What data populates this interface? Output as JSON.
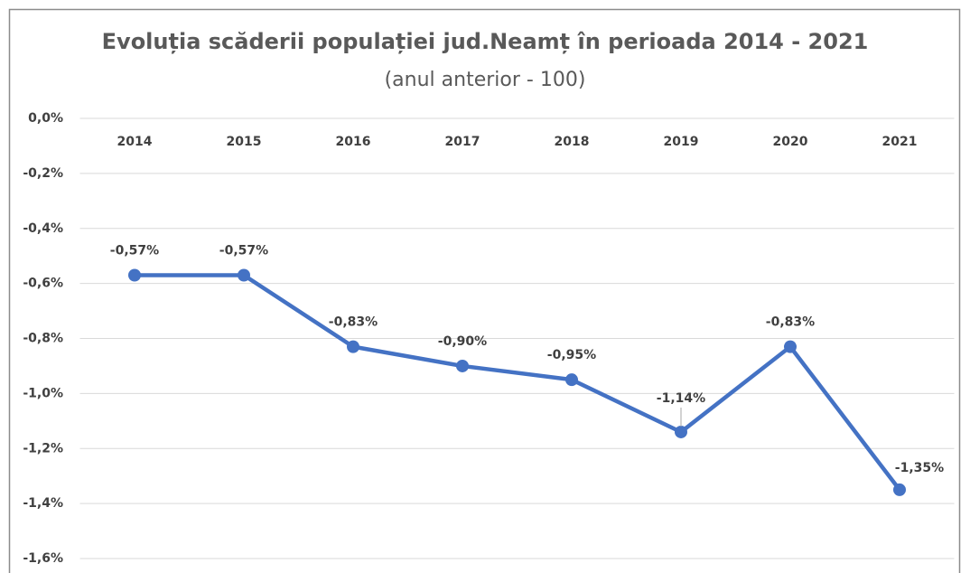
{
  "chart_data": {
    "type": "line",
    "title": "Evoluția scăderii populației jud.Neamț în perioada 2014 - 2021",
    "subtitle": "(anul anterior - 100)",
    "categories": [
      "2014",
      "2015",
      "2016",
      "2017",
      "2018",
      "2019",
      "2020",
      "2021"
    ],
    "series": [
      {
        "name": "Evoluția",
        "color": "#4472c4",
        "values": [
          -0.57,
          -0.57,
          -0.83,
          -0.9,
          -0.95,
          -1.14,
          -0.83,
          -1.35
        ],
        "value_labels": [
          "-0,57%",
          "-0,57%",
          "-0,83%",
          "-0,90%",
          "-0,95%",
          "-1,14%",
          "-0,83%",
          "-1,35%"
        ]
      }
    ],
    "ylim": [
      -1.6,
      0
    ],
    "yticks": [
      {
        "value": 0,
        "label": "0,0%"
      },
      {
        "value": -0.2,
        "label": "-0,2%"
      },
      {
        "value": -0.4,
        "label": "-0,4%"
      },
      {
        "value": -0.6,
        "label": "-0,6%"
      },
      {
        "value": -0.8,
        "label": "-0,8%"
      },
      {
        "value": -1.0,
        "label": "-1,0%"
      },
      {
        "value": -1.2,
        "label": "-1,2%"
      },
      {
        "value": -1.4,
        "label": "-1,4%"
      },
      {
        "value": -1.6,
        "label": "-1,6%"
      }
    ],
    "grid": true
  }
}
